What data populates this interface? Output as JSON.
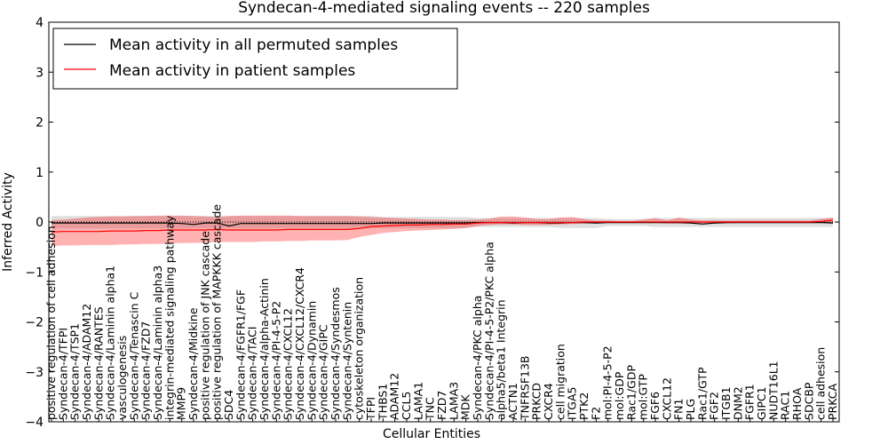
{
  "chart_data": {
    "type": "line",
    "title": "Syndecan-4-mediated signaling events -- 220 samples",
    "xlabel": "Cellular Entities",
    "ylabel": "Inferred Activity",
    "ylim": [
      -4,
      4
    ],
    "yticks": [
      4,
      3,
      2,
      1,
      0,
      -1,
      -2,
      -3,
      -4
    ],
    "ytick_labels": [
      "4",
      "3",
      "2",
      "1",
      "0",
      "−1",
      "−2",
      "−3",
      "−4"
    ],
    "legend_position": "top-left",
    "categories": [
      "positive regulation of cell adhesion",
      "Syndecan-4/TFPI",
      "Syndecan-4/TSP1",
      "Syndecan-4/ADAM12",
      "Syndecan-4/RANTES",
      "Syndecan-4/Laminin alpha1",
      "vasculogenesis",
      "Syndecan-4/Tenascin C",
      "Syndecan-4/FZD7",
      "Syndecan-4/Laminin alpha3",
      "integrin-mediated signaling pathway",
      "MMP9",
      "Syndecan-4/Midkine",
      "positive regulation of JNK cascade",
      "positive regulation of MAPKKK cascade",
      "SDC4",
      "Syndecan-4/FGFR1/FGF",
      "Syndecan-4/TACI",
      "Syndecan-4/alpha-Actinin",
      "Syndecan-4/PI-4-5-P2",
      "Syndecan-4/CXCL12",
      "Syndecan-4/CXCL12/CXCR4",
      "Syndecan-4/Dynamin",
      "Syndecan-4/GIPC",
      "Syndecan-4/Syndesmos",
      "Syndecan-4/Syntenin",
      "cytoskeleton organization",
      "TFPI",
      "THBS1",
      "ADAM12",
      "CCL5",
      "LAMA1",
      "TNC",
      "FZD7",
      "LAMA3",
      "MDK",
      "Syndecan-4/PKC alpha",
      "Syndecan-4/PI-4-5-P2/PKC alpha",
      "alpha5/beta1 Integrin",
      "ACTN1",
      "TNFRSF13B",
      "PRKCD",
      "CXCR4",
      "cell migration",
      "ITGA5",
      "PTK2",
      "F2",
      "mol:PI-4-5-P2",
      "mol:GDP",
      "Rac1/GDP",
      "mol:GTP",
      "FGF6",
      "CXCL12",
      "FN1",
      "PLG",
      "Rac1/GTP",
      "FGF2",
      "ITGB1",
      "DNM2",
      "FGFR1",
      "GIPC1",
      "NUDT16L1",
      "RAC1",
      "RHOA",
      "SDCBP",
      "cell adhesion",
      "PRKCA"
    ],
    "series": [
      {
        "name": "Mean activity in all permuted samples",
        "color": "#000000",
        "values": [
          -0.02,
          -0.02,
          -0.02,
          -0.02,
          -0.02,
          -0.02,
          -0.02,
          -0.02,
          -0.02,
          -0.02,
          -0.02,
          -0.03,
          -0.05,
          -0.02,
          -0.02,
          -0.08,
          -0.03,
          -0.03,
          -0.03,
          -0.03,
          -0.03,
          -0.03,
          -0.03,
          -0.03,
          -0.03,
          -0.03,
          -0.03,
          -0.03,
          -0.02,
          -0.02,
          -0.02,
          -0.02,
          -0.02,
          -0.02,
          -0.02,
          -0.02,
          -0.01,
          -0.01,
          -0.01,
          -0.02,
          -0.01,
          -0.01,
          -0.02,
          -0.02,
          -0.01,
          -0.01,
          -0.02,
          -0.01,
          -0.01,
          -0.01,
          -0.01,
          -0.01,
          -0.01,
          -0.01,
          -0.02,
          -0.04,
          -0.02,
          -0.01,
          -0.01,
          -0.01,
          -0.01,
          -0.01,
          -0.01,
          -0.01,
          -0.01,
          -0.01,
          -0.02
        ],
        "band_low": [
          -0.13,
          -0.13,
          -0.13,
          -0.13,
          -0.13,
          -0.13,
          -0.13,
          -0.13,
          -0.13,
          -0.13,
          -0.13,
          -0.13,
          -0.13,
          -0.13,
          -0.13,
          -0.13,
          -0.13,
          -0.13,
          -0.13,
          -0.13,
          -0.13,
          -0.13,
          -0.13,
          -0.13,
          -0.13,
          -0.13,
          -0.13,
          -0.13,
          -0.12,
          -0.12,
          -0.12,
          -0.12,
          -0.12,
          -0.12,
          -0.12,
          -0.12,
          -0.1,
          -0.1,
          -0.1,
          -0.1,
          -0.1,
          -0.1,
          -0.1,
          -0.12,
          -0.12,
          -0.12,
          -0.12,
          -0.08,
          -0.08,
          -0.08,
          -0.08,
          -0.1,
          -0.1,
          -0.1,
          -0.1,
          -0.1,
          -0.1,
          -0.1,
          -0.1,
          -0.1,
          -0.1,
          -0.1,
          -0.1,
          -0.1,
          -0.1,
          -0.1,
          -0.1
        ],
        "band_high": [
          0.12,
          0.12,
          0.12,
          0.12,
          0.12,
          0.12,
          0.12,
          0.12,
          0.12,
          0.12,
          0.12,
          0.12,
          0.12,
          0.12,
          0.12,
          0.12,
          0.12,
          0.12,
          0.12,
          0.12,
          0.12,
          0.12,
          0.12,
          0.12,
          0.12,
          0.12,
          0.12,
          0.12,
          0.1,
          0.1,
          0.1,
          0.1,
          0.1,
          0.1,
          0.1,
          0.1,
          0.08,
          0.08,
          0.08,
          0.08,
          0.08,
          0.08,
          0.08,
          0.08,
          0.08,
          0.08,
          0.08,
          0.06,
          0.06,
          0.06,
          0.06,
          0.08,
          0.08,
          0.08,
          0.08,
          0.08,
          0.08,
          0.08,
          0.08,
          0.08,
          0.08,
          0.08,
          0.08,
          0.08,
          0.08,
          0.08,
          0.08
        ]
      },
      {
        "name": "Mean activity in patient samples",
        "color": "#ff0000",
        "values": [
          -0.2,
          -0.19,
          -0.19,
          -0.19,
          -0.19,
          -0.18,
          -0.18,
          -0.18,
          -0.17,
          -0.17,
          -0.16,
          -0.16,
          -0.16,
          -0.16,
          -0.15,
          -0.16,
          -0.16,
          -0.16,
          -0.16,
          -0.16,
          -0.15,
          -0.15,
          -0.15,
          -0.15,
          -0.15,
          -0.15,
          -0.13,
          -0.09,
          -0.08,
          -0.07,
          -0.06,
          -0.06,
          -0.05,
          -0.05,
          -0.04,
          -0.04,
          -0.02,
          -0.01,
          -0.01,
          -0.01,
          -0.01,
          -0.01,
          -0.01,
          -0.01,
          -0.01,
          0.0,
          0.0,
          0.0,
          0.0,
          0.0,
          0.0,
          0.0,
          0.0,
          0.0,
          0.0,
          0.0,
          0.0,
          0.0,
          0.0,
          0.0,
          0.0,
          0.0,
          0.0,
          0.0,
          0.0,
          0.01,
          0.04
        ],
        "band_low": [
          -0.48,
          -0.47,
          -0.47,
          -0.46,
          -0.46,
          -0.46,
          -0.45,
          -0.45,
          -0.44,
          -0.44,
          -0.43,
          -0.42,
          -0.42,
          -0.41,
          -0.4,
          -0.4,
          -0.4,
          -0.4,
          -0.39,
          -0.39,
          -0.38,
          -0.38,
          -0.37,
          -0.37,
          -0.37,
          -0.36,
          -0.3,
          -0.26,
          -0.22,
          -0.2,
          -0.18,
          -0.17,
          -0.16,
          -0.15,
          -0.14,
          -0.12,
          -0.08,
          -0.06,
          -0.05,
          -0.05,
          -0.06,
          -0.06,
          -0.06,
          -0.05,
          -0.04,
          -0.03,
          -0.03,
          -0.02,
          -0.02,
          -0.02,
          -0.02,
          -0.02,
          -0.03,
          -0.03,
          -0.03,
          -0.03,
          -0.03,
          -0.03,
          -0.02,
          -0.02,
          -0.02,
          -0.02,
          -0.02,
          -0.02,
          -0.02,
          -0.02,
          -0.01
        ],
        "band_high": [
          0.04,
          0.05,
          0.07,
          0.09,
          0.1,
          0.11,
          0.11,
          0.12,
          0.12,
          0.13,
          0.13,
          0.13,
          0.12,
          0.11,
          0.1,
          0.12,
          0.13,
          0.13,
          0.13,
          0.13,
          0.13,
          0.12,
          0.12,
          0.12,
          0.12,
          0.12,
          0.11,
          0.1,
          0.09,
          0.08,
          0.07,
          0.06,
          0.05,
          0.05,
          0.04,
          0.04,
          0.05,
          0.07,
          0.11,
          0.11,
          0.09,
          0.06,
          0.06,
          0.09,
          0.1,
          0.06,
          0.03,
          0.03,
          0.02,
          0.02,
          0.05,
          0.08,
          0.03,
          0.09,
          0.05,
          0.03,
          0.03,
          0.03,
          0.03,
          0.03,
          0.03,
          0.03,
          0.03,
          0.03,
          0.03,
          0.06,
          0.09
        ]
      }
    ]
  }
}
